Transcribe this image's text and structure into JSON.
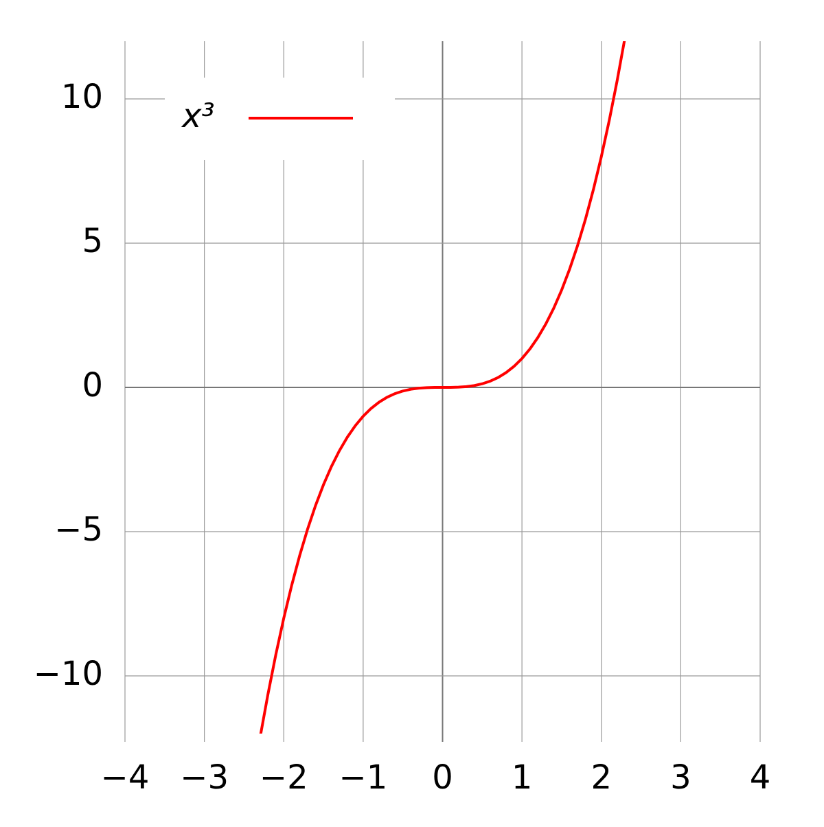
{
  "chart_data": {
    "type": "line",
    "x": [
      -2.29,
      -2.2,
      -2.1,
      -2.0,
      -1.9,
      -1.8,
      -1.7,
      -1.6,
      -1.5,
      -1.4,
      -1.3,
      -1.2,
      -1.1,
      -1.0,
      -0.9,
      -0.8,
      -0.7,
      -0.6,
      -0.5,
      -0.4,
      -0.3,
      -0.2,
      -0.1,
      0,
      0.1,
      0.2,
      0.3,
      0.4,
      0.5,
      0.6,
      0.7,
      0.8,
      0.9,
      1.0,
      1.1,
      1.2,
      1.3,
      1.4,
      1.5,
      1.6,
      1.7,
      1.8,
      1.9,
      2.0,
      2.1,
      2.2,
      2.29
    ],
    "series": [
      {
        "name": "x³",
        "color": "#ff0000",
        "values": [
          -12.01,
          -10.648,
          -9.261,
          -8,
          -6.859,
          -5.832,
          -4.913,
          -4.096,
          -3.375,
          -2.744,
          -2.197,
          -1.728,
          -1.331,
          -1,
          -0.729,
          -0.512,
          -0.343,
          -0.216,
          -0.125,
          -0.064,
          -0.027,
          -0.008,
          -0.001,
          0,
          0.001,
          0.008,
          0.027,
          0.064,
          0.125,
          0.216,
          0.343,
          0.512,
          0.729,
          1,
          1.331,
          1.728,
          2.197,
          2.744,
          3.375,
          4.096,
          4.913,
          5.832,
          6.859,
          8,
          9.261,
          10.648,
          12.01
        ]
      }
    ],
    "xlim": [
      -4,
      4
    ],
    "ylim": [
      -12,
      12
    ],
    "xticks": [
      {
        "value": -4,
        "label": "−4"
      },
      {
        "value": -3,
        "label": "−3"
      },
      {
        "value": -2,
        "label": "−2"
      },
      {
        "value": -1,
        "label": "−1"
      },
      0,
      1,
      2,
      3,
      4
    ],
    "yticks": [
      {
        "value": -10,
        "label": "−10"
      },
      {
        "value": -5,
        "label": "−5"
      },
      0,
      5,
      10
    ],
    "grid": true,
    "legend": "upper left"
  }
}
